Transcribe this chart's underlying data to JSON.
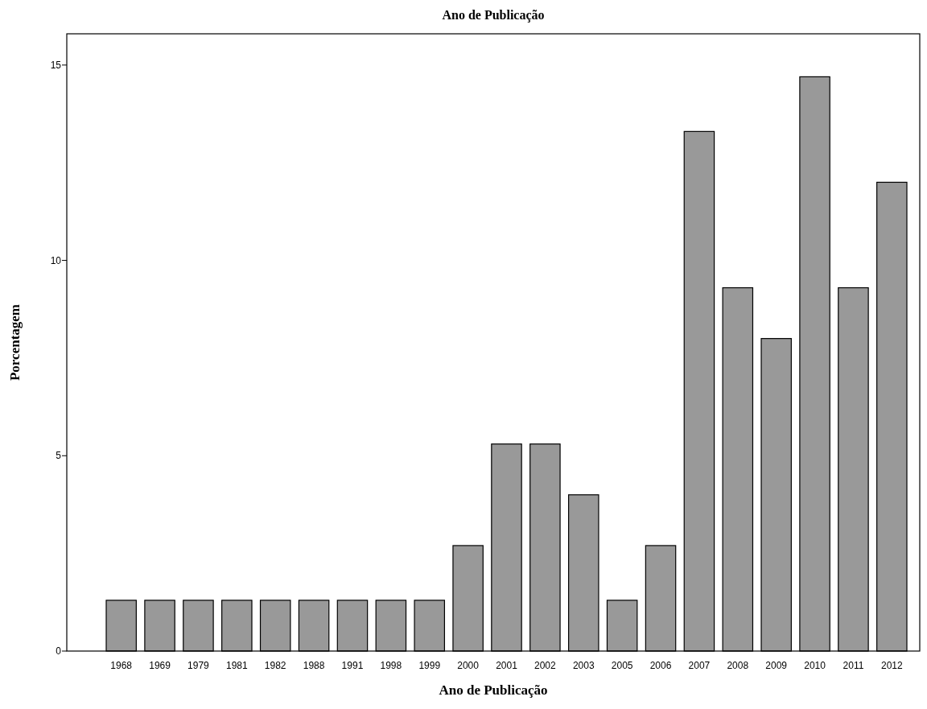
{
  "chart_data": {
    "type": "bar",
    "title": "Ano de Publicação",
    "xlabel": "Ano de Publicação",
    "ylabel": "Porcentagem",
    "categories": [
      "1968",
      "1969",
      "1979",
      "1981",
      "1982",
      "1988",
      "1991",
      "1998",
      "1999",
      "2000",
      "2001",
      "2002",
      "2003",
      "2005",
      "2006",
      "2007",
      "2008",
      "2009",
      "2010",
      "2011",
      "2012"
    ],
    "values": [
      1.3,
      1.3,
      1.3,
      1.3,
      1.3,
      1.3,
      1.3,
      1.3,
      1.3,
      2.7,
      5.3,
      5.3,
      4,
      1.3,
      2.7,
      13.3,
      9.3,
      8,
      14.7,
      9.3,
      12
    ],
    "color": "#999999",
    "ylim": [
      0,
      15.8
    ],
    "yticks": [
      0,
      5,
      10,
      15
    ],
    "grid": false
  }
}
